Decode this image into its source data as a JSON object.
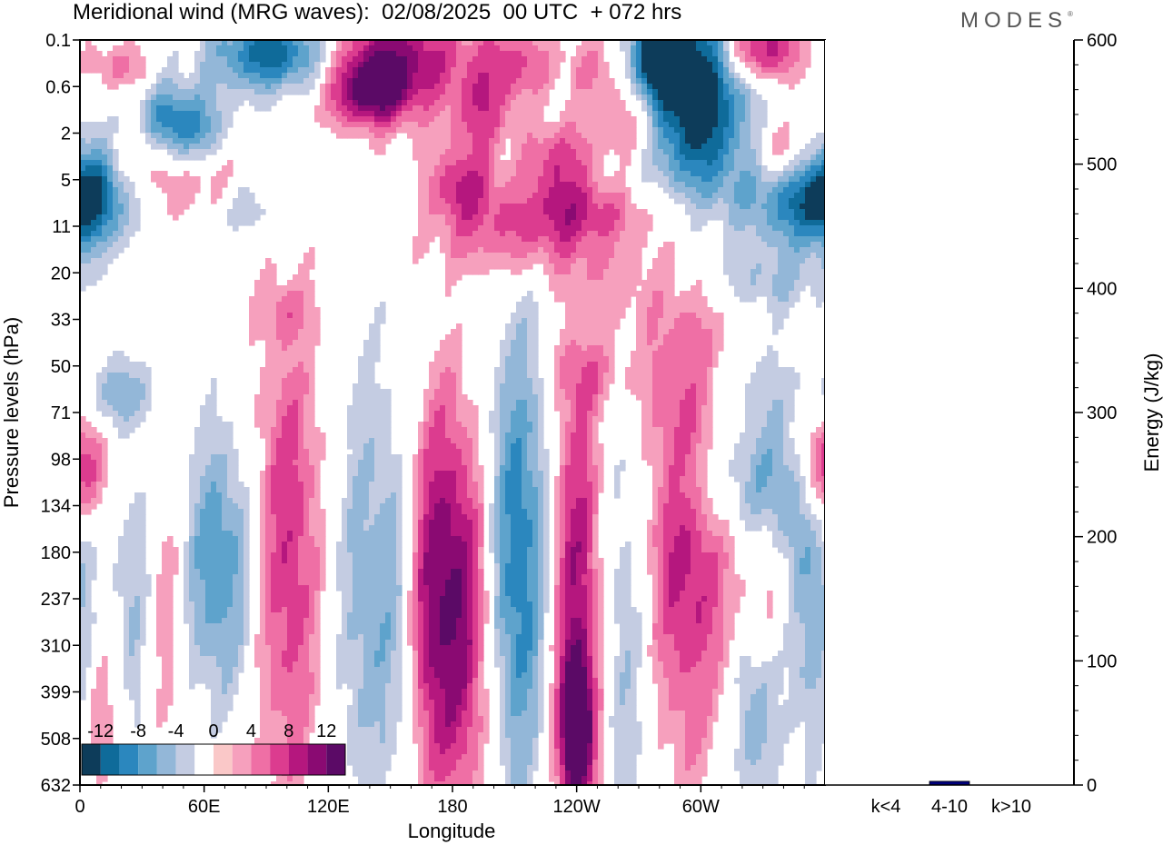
{
  "header": {
    "title": "Meridional wind (MRG waves):  02/08/2025  00 UTC  + 072 hrs",
    "brand": "MODES",
    "brand_mark": "®"
  },
  "chart_data": [
    {
      "type": "heatmap",
      "title": "Meridional wind (MRG waves):  02/08/2025  00 UTC  + 072 hrs",
      "xlabel": "Longitude",
      "ylabel": "Pressure levels (hPa)",
      "x_tick_labels": [
        "0",
        "60E",
        "120E",
        "180",
        "120W",
        "60W"
      ],
      "x_tick_degrees": [
        0,
        60,
        120,
        180,
        240,
        300
      ],
      "xlim": [
        0,
        360
      ],
      "y_tick_labels": [
        "0.1",
        "0.6",
        "2",
        "5",
        "11",
        "20",
        "33",
        "50",
        "71",
        "98",
        "134",
        "180",
        "237",
        "310",
        "399",
        "508",
        "632"
      ],
      "colorbar": {
        "labels": [
          "-12",
          "-8",
          "-4",
          "0",
          "4",
          "8",
          "12"
        ],
        "levels": [
          -14,
          -12,
          -10,
          -8,
          -6,
          -4,
          -2,
          2,
          4,
          6,
          8,
          10,
          12,
          14
        ],
        "colors": [
          "#0d3c5a",
          "#0f6b9a",
          "#2b87be",
          "#5ea3cc",
          "#93b7d8",
          "#c4cce2",
          "#ffffff",
          "#fac8c8",
          "#f6a0bd",
          "#ef6fa5",
          "#dc3c8f",
          "#b5177e",
          "#8a0a72",
          "#5b0a66"
        ]
      },
      "blobs": [
        {
          "lon": 95,
          "lev": 0.3,
          "rx": 22,
          "ry": 0.6,
          "v": -12
        },
        {
          "lon": 150,
          "lev": 0.4,
          "rx": 25,
          "ry": 0.9,
          "v": 11
        },
        {
          "lon": 140,
          "lev": 1.1,
          "rx": 13,
          "ry": 0.5,
          "v": 9
        },
        {
          "lon": 185,
          "lev": 3.1,
          "rx": 12,
          "ry": 0.6,
          "v": 8
        },
        {
          "lon": 195,
          "lev": 1.6,
          "rx": 10,
          "ry": 0.6,
          "v": 6
        },
        {
          "lon": 297,
          "lev": 1.2,
          "rx": 18,
          "ry": 1.6,
          "v": -16
        },
        {
          "lon": 280,
          "lev": 0.3,
          "rx": 9,
          "ry": 0.6,
          "v": -12
        },
        {
          "lon": 328,
          "lev": 0.2,
          "rx": 14,
          "ry": 0.5,
          "v": 11
        },
        {
          "lon": 52,
          "lev": 2.0,
          "rx": 14,
          "ry": 0.6,
          "v": -8
        },
        {
          "lon": 40,
          "lev": 1.7,
          "rx": 12,
          "ry": 0.6,
          "v": -5
        },
        {
          "lon": 5,
          "lev": 3.2,
          "rx": 12,
          "ry": 0.9,
          "v": -8
        },
        {
          "lon": 350,
          "lev": 3.5,
          "rx": 22,
          "ry": 0.7,
          "v": -9
        },
        {
          "lon": 230,
          "lev": 2.6,
          "rx": 12,
          "ry": 0.6,
          "v": 7
        },
        {
          "lon": 265,
          "lev": 1.8,
          "rx": 12,
          "ry": 0.6,
          "v": 6
        },
        {
          "lon": 340,
          "lev": 2.4,
          "rx": 10,
          "ry": 0.5,
          "v": 5
        },
        {
          "lon": 240,
          "lev": 3.7,
          "rx": 30,
          "ry": 0.5,
          "v": 6
        },
        {
          "lon": 210,
          "lev": 4.4,
          "rx": 25,
          "ry": 0.6,
          "v": 5
        },
        {
          "lon": 60,
          "lev": 3.0,
          "rx": 20,
          "ry": 0.6,
          "v": 5
        },
        {
          "lon": 20,
          "lev": 0.6,
          "rx": 10,
          "ry": 0.4,
          "v": 5
        },
        {
          "lon": 30,
          "lev": 2.4,
          "rx": 12,
          "ry": 0.5,
          "v": 5
        },
        {
          "lon": 80,
          "lev": 3.5,
          "rx": 12,
          "ry": 0.5,
          "v": -5
        },
        {
          "lon": 210,
          "lev": 0.5,
          "rx": 15,
          "ry": 0.6,
          "v": 6
        },
        {
          "lon": 250,
          "lev": 0.6,
          "rx": 10,
          "ry": 0.5,
          "v": 4
        },
        {
          "lon": 330,
          "lev": 5.2,
          "rx": 20,
          "ry": 0.5,
          "v": -4
        },
        {
          "lon": 100,
          "lev": 5.8,
          "rx": 10,
          "ry": 0.4,
          "v": 3
        },
        {
          "lon": 260,
          "lev": 5.3,
          "rx": 12,
          "ry": 0.7,
          "v": 3
        },
        {
          "lon": 250,
          "lev": 7.2,
          "rx": 16,
          "ry": 0.5,
          "v": 3
        },
        {
          "lon": 20,
          "lev": 7.6,
          "rx": 15,
          "ry": 0.5,
          "v": -5
        },
        {
          "lon": 320,
          "lev": 7.4,
          "rx": 15,
          "ry": 0.5,
          "v": -3
        },
        {
          "lon": 3,
          "lev": 9.3,
          "rx": 10,
          "ry": 0.8,
          "v": 6
        },
        {
          "lon": 25,
          "lev": 12.0,
          "rx": 7,
          "ry": 2.5,
          "v": -4
        },
        {
          "lon": 42,
          "lev": 12.0,
          "rx": 6,
          "ry": 2.5,
          "v": 4
        },
        {
          "lon": 68,
          "lev": 11.3,
          "rx": 13,
          "ry": 2.0,
          "v": -8
        },
        {
          "lon": 100,
          "lev": 11.0,
          "rx": 12,
          "ry": 3.5,
          "v": 8
        },
        {
          "lon": 138,
          "lev": 12.0,
          "rx": 11,
          "ry": 3.5,
          "v": -5
        },
        {
          "lon": 155,
          "lev": 12.0,
          "rx": 8,
          "ry": 3.0,
          "v": -6
        },
        {
          "lon": 172,
          "lev": 12.0,
          "rx": 13,
          "ry": 3.0,
          "v": 12
        },
        {
          "lon": 190,
          "lev": 12.5,
          "rx": 9,
          "ry": 3.0,
          "v": 6
        },
        {
          "lon": 212,
          "lev": 11.3,
          "rx": 13,
          "ry": 3.5,
          "v": -10
        },
        {
          "lon": 240,
          "lev": 12.5,
          "rx": 10,
          "ry": 4.0,
          "v": 12
        },
        {
          "lon": 262,
          "lev": 12.5,
          "rx": 12,
          "ry": 3.5,
          "v": -6
        },
        {
          "lon": 292,
          "lev": 10.3,
          "rx": 17,
          "ry": 3.5,
          "v": 10
        },
        {
          "lon": 312,
          "lev": 9.4,
          "rx": 22,
          "ry": 1.0,
          "v": -6
        },
        {
          "lon": 345,
          "lev": 10.0,
          "rx": 12,
          "ry": 2.0,
          "v": -5
        },
        {
          "lon": 335,
          "lev": 11.8,
          "rx": 10,
          "ry": 1.0,
          "v": 4
        },
        {
          "lon": 355,
          "lev": 13.0,
          "rx": 8,
          "ry": 2.0,
          "v": -5
        },
        {
          "lon": 355,
          "lev": 8.8,
          "rx": 8,
          "ry": 1.0,
          "v": 5
        },
        {
          "lon": 10,
          "lev": 14.5,
          "rx": 8,
          "ry": 1.2,
          "v": 4
        },
        {
          "lon": 240,
          "lev": 14.8,
          "rx": 5,
          "ry": 1.0,
          "v": 12
        },
        {
          "lon": 325,
          "lev": 14.6,
          "rx": 8,
          "ry": 1.5,
          "v": -6
        }
      ]
    },
    {
      "type": "bar",
      "ylabel": "Energy (J/kg)",
      "ylim": [
        0,
        600
      ],
      "y_tick_labels": [
        "0",
        "100",
        "200",
        "300",
        "400",
        "500",
        "600"
      ],
      "categories": [
        "k<4",
        "4-10",
        "k>10"
      ],
      "values": [
        0,
        3,
        0
      ],
      "bar_color": "#00007a"
    }
  ]
}
